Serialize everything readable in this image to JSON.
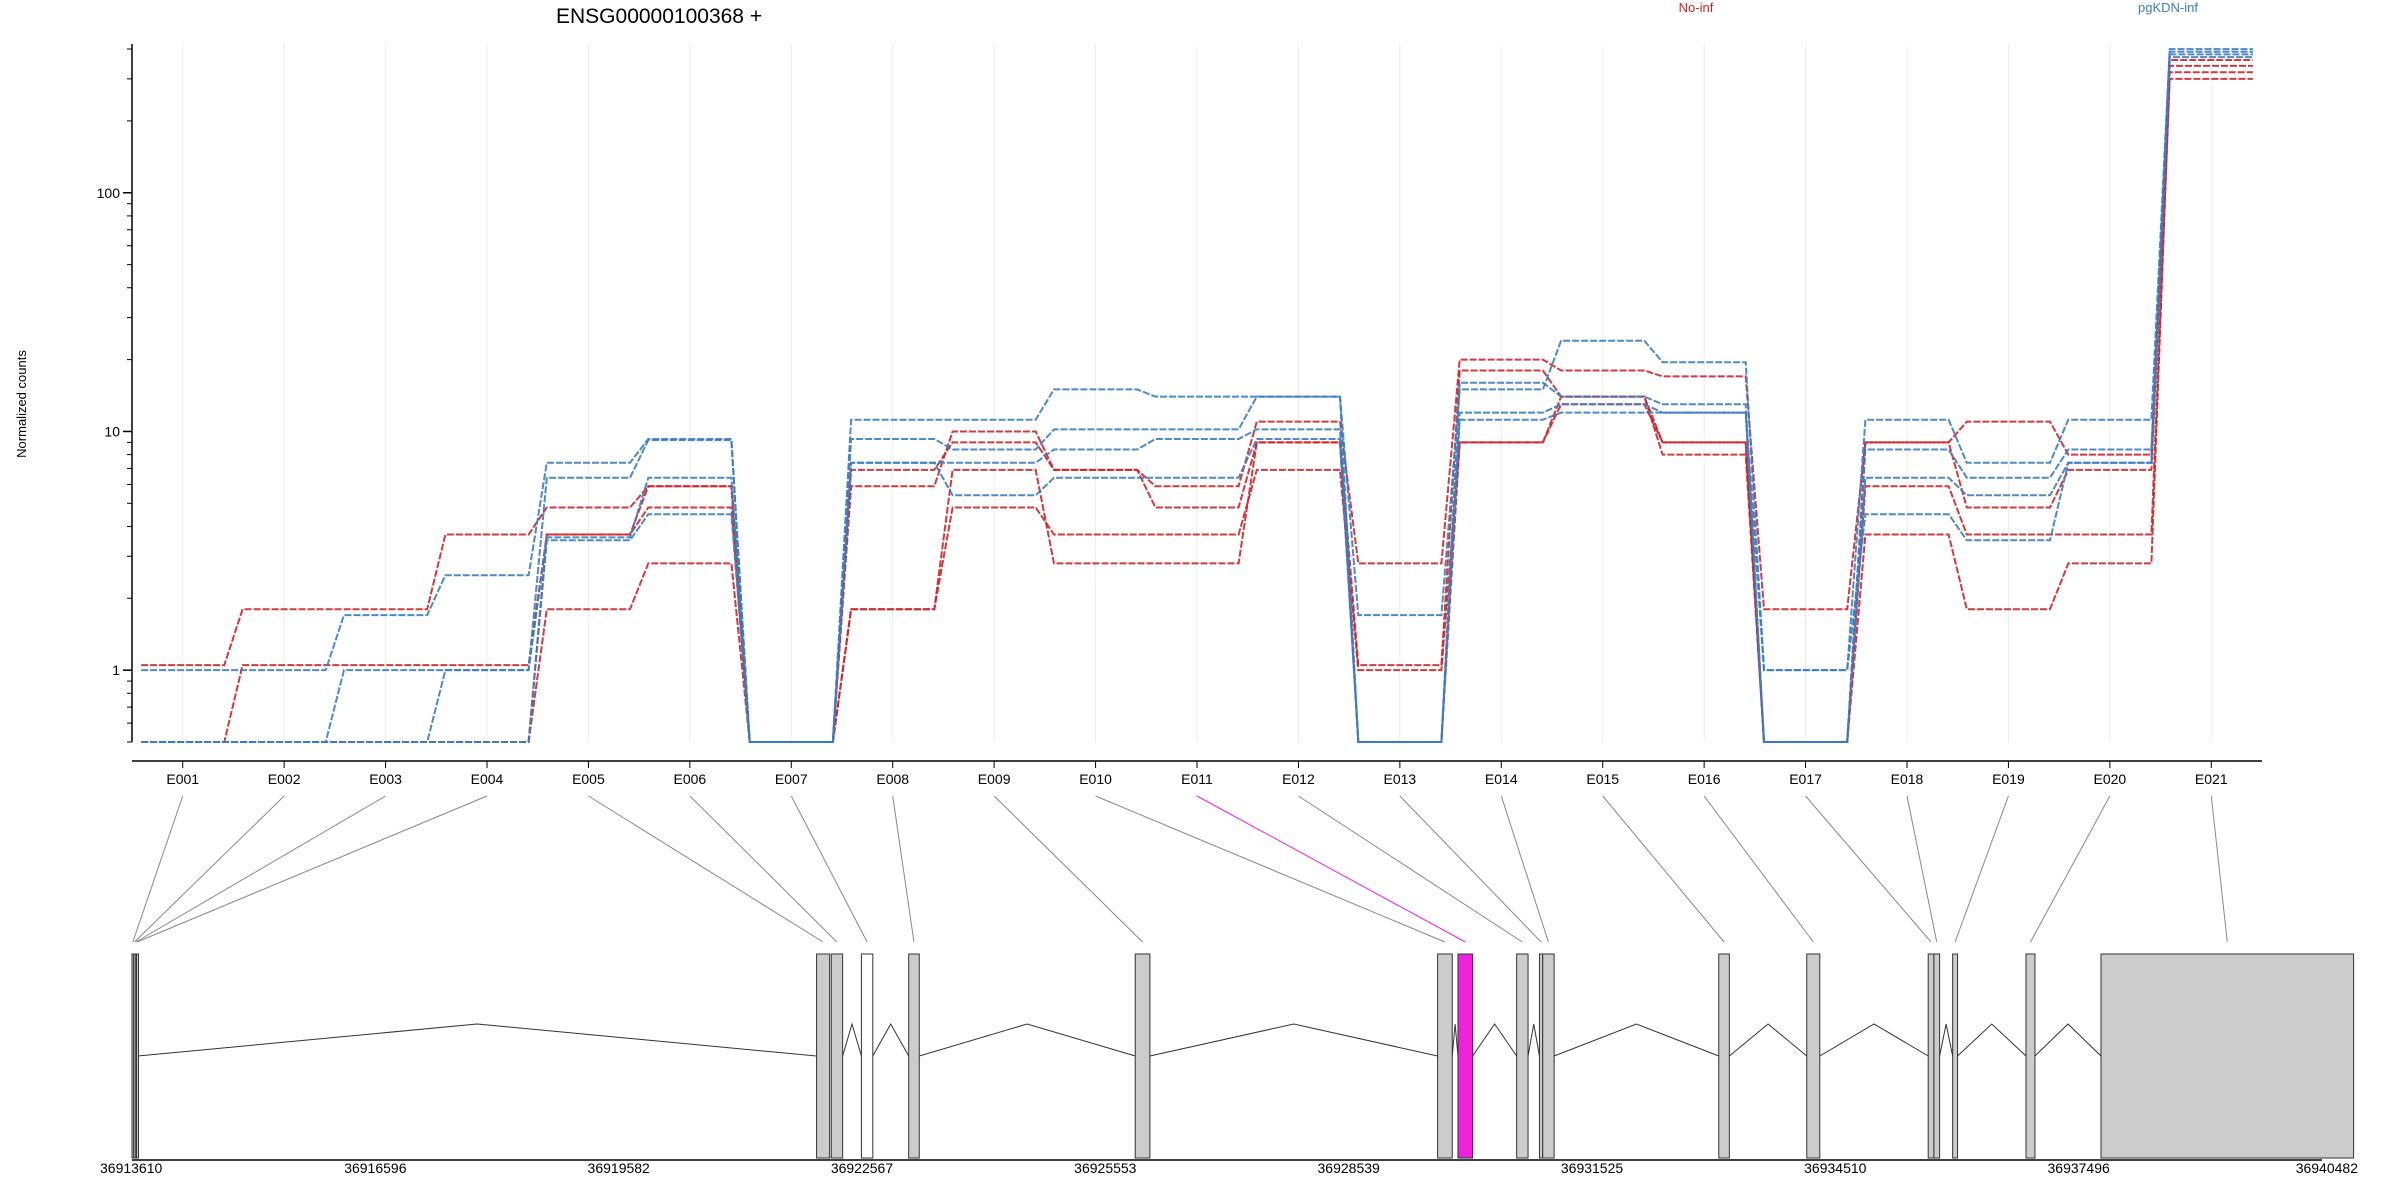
{
  "chart_data": {
    "type": "line",
    "title": "ENSG00000100368 +",
    "xlabel": "",
    "ylabel": "Normalized counts",
    "y_scale": "log10",
    "ylim": [
      0.5,
      420
    ],
    "y_ticks": [
      1,
      10,
      100
    ],
    "y_tick_labels": [
      "1",
      "10",
      "100"
    ],
    "categories": [
      "E001",
      "E002",
      "E003",
      "E004",
      "E005",
      "E006",
      "E007",
      "E008",
      "E009",
      "E010",
      "E011",
      "E012",
      "E013",
      "E014",
      "E015",
      "E016",
      "E017",
      "E018",
      "E019",
      "E020",
      "E021"
    ],
    "highlighted_exon": "E011",
    "legend": [
      {
        "label": "No-inf",
        "color": "#cc2529"
      },
      {
        "label": "pgKDN-inf",
        "color": "#3a7dc1"
      }
    ],
    "series": [
      {
        "group": "No-inf",
        "values": [
          1.05,
          1.8,
          1.8,
          3.7,
          4.8,
          5.9,
          0.5,
          5.9,
          10.0,
          6.9,
          5.9,
          11.0,
          2.8,
          20.0,
          18.0,
          17.0,
          1.8,
          9.0,
          11.0,
          8.0,
          360
        ]
      },
      {
        "group": "No-inf",
        "values": [
          0.5,
          1.05,
          1.05,
          1.05,
          3.7,
          4.8,
          0.5,
          6.9,
          9.0,
          6.9,
          4.8,
          9.0,
          1.05,
          18.0,
          14.0,
          9.0,
          0.5,
          9.0,
          4.8,
          6.9,
          340
        ]
      },
      {
        "group": "No-inf",
        "values": [
          0.5,
          0.5,
          0.5,
          0.5,
          1.8,
          2.8,
          0.5,
          1.8,
          4.8,
          3.7,
          3.7,
          6.9,
          1.0,
          9.0,
          14.0,
          8.0,
          0.5,
          3.7,
          1.8,
          2.8,
          320
        ]
      },
      {
        "group": "No-inf",
        "values": [
          0.5,
          0.5,
          0.5,
          0.5,
          3.7,
          5.9,
          0.5,
          1.8,
          6.9,
          2.8,
          2.8,
          9.0,
          0.5,
          9.0,
          13.0,
          9.0,
          0.5,
          5.9,
          3.7,
          3.7,
          300
        ]
      },
      {
        "group": "pgKDN-inf",
        "values": [
          1.0,
          1.0,
          1.7,
          2.5,
          7.4,
          9.3,
          0.5,
          11.2,
          11.2,
          15.0,
          14.0,
          14.0,
          1.7,
          15.0,
          24.0,
          19.5,
          1.0,
          11.2,
          7.4,
          11.2,
          400
        ]
      },
      {
        "group": "pgKDN-inf",
        "values": [
          0.5,
          0.5,
          1.0,
          1.0,
          6.4,
          9.2,
          0.5,
          9.3,
          8.4,
          10.2,
          10.2,
          14.0,
          0.5,
          16.0,
          14.0,
          13.0,
          0.5,
          8.4,
          6.4,
          8.4,
          390
        ]
      },
      {
        "group": "pgKDN-inf",
        "values": [
          0.5,
          0.5,
          0.5,
          1.0,
          3.6,
          6.4,
          0.5,
          7.4,
          7.4,
          8.4,
          9.3,
          10.2,
          0.5,
          12.0,
          13.0,
          12.0,
          0.5,
          6.4,
          5.4,
          7.4,
          380
        ]
      },
      {
        "group": "pgKDN-inf",
        "values": [
          0.5,
          0.5,
          0.5,
          0.5,
          3.5,
          4.5,
          0.5,
          7.4,
          5.4,
          6.4,
          6.4,
          9.3,
          0.5,
          11.2,
          12.0,
          12.0,
          1.0,
          4.5,
          3.5,
          7.4,
          370
        ]
      }
    ],
    "gene_model": {
      "coord_range": [
        36913610,
        36940482
      ],
      "coord_ticks": [
        36913610,
        36916596,
        36919582,
        36922567,
        36925553,
        36928539,
        36931525,
        36934510,
        36937496,
        36940482
      ],
      "coord_tick_labels": [
        "36913610",
        "36916596",
        "36919582",
        "36922567",
        "36925553",
        "36928539",
        "36931525",
        "36934510",
        "36937496",
        "36940482"
      ],
      "exons": [
        {
          "id": "E001",
          "start": 36913610,
          "end": 36913630,
          "fill": "#cccccc"
        },
        {
          "id": "E002",
          "start": 36913630,
          "end": 36913650,
          "fill": "#cccccc"
        },
        {
          "id": "E003",
          "start": 36913650,
          "end": 36913665,
          "fill": "#cccccc"
        },
        {
          "id": "E004",
          "start": 36913665,
          "end": 36913680,
          "fill": "#cccccc"
        },
        {
          "id": "E005",
          "start": 36922010,
          "end": 36922170,
          "fill": "#cccccc"
        },
        {
          "id": "E006",
          "start": 36922190,
          "end": 36922330,
          "fill": "#cccccc"
        },
        {
          "id": "E007",
          "start": 36922560,
          "end": 36922700,
          "fill": "#ffffff"
        },
        {
          "id": "E008",
          "start": 36923140,
          "end": 36923270,
          "fill": "#cccccc"
        },
        {
          "id": "E009",
          "start": 36925920,
          "end": 36926100,
          "fill": "#cccccc"
        },
        {
          "id": "E010",
          "start": 36929630,
          "end": 36929810,
          "fill": "#cccccc"
        },
        {
          "id": "E011",
          "start": 36929880,
          "end": 36930060,
          "fill": "#ee22dd"
        },
        {
          "id": "E012",
          "start": 36930600,
          "end": 36930740,
          "fill": "#cccccc"
        },
        {
          "id": "E013",
          "start": 36930880,
          "end": 36930920,
          "fill": "#cccccc"
        },
        {
          "id": "E014",
          "start": 36930920,
          "end": 36931060,
          "fill": "#cccccc"
        },
        {
          "id": "E015",
          "start": 36933080,
          "end": 36933210,
          "fill": "#cccccc"
        },
        {
          "id": "E016",
          "start": 36934160,
          "end": 36934320,
          "fill": "#cccccc"
        },
        {
          "id": "E017",
          "start": 36935650,
          "end": 36935720,
          "fill": "#cccccc"
        },
        {
          "id": "E018",
          "start": 36935720,
          "end": 36935790,
          "fill": "#cccccc"
        },
        {
          "id": "E019",
          "start": 36935950,
          "end": 36936010,
          "fill": "#cccccc"
        },
        {
          "id": "E020",
          "start": 36936850,
          "end": 36936960,
          "fill": "#cccccc"
        },
        {
          "id": "E021",
          "start": 36937770,
          "end": 36940870,
          "fill": "#cccccc"
        }
      ]
    }
  },
  "colors": {
    "no_inf": "#cc2529",
    "pgkdn_inf": "#3a7dc1",
    "highlight": "#ee22dd",
    "exon_gray": "#cccccc"
  }
}
